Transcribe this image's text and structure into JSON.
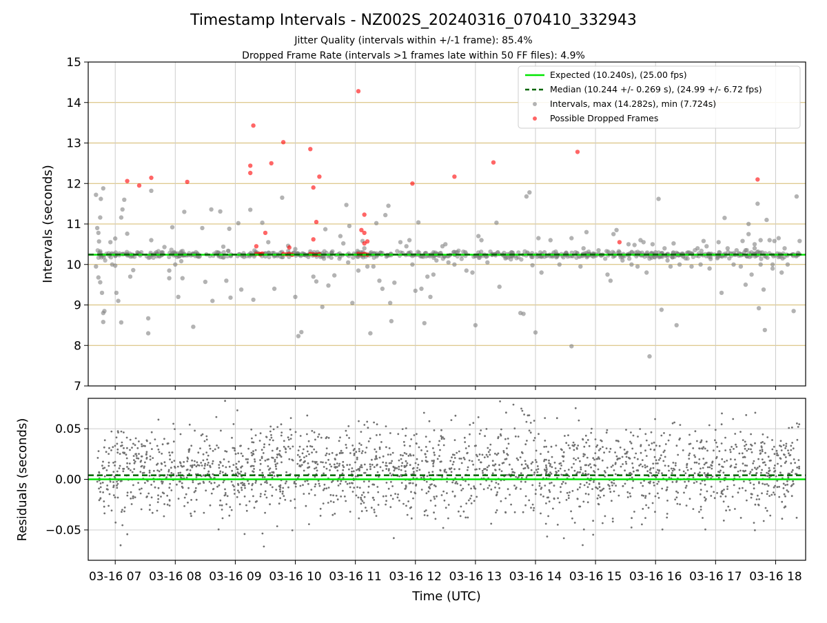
{
  "chart_data": [
    {
      "type": "scatter",
      "title": "Timestamp Intervals - NZ002S_20240316_070410_332943",
      "subtitle_lines": [
        "Jitter Quality (intervals within +/-1 frame): 85.4%",
        "Dropped Frame Rate (intervals >1 frames late within 50 FF files): 4.9%"
      ],
      "xlabel": "",
      "ylabel": "Intervals (seconds)",
      "ylim": [
        7,
        15
      ],
      "yticks": [
        "7",
        "8",
        "9",
        "10",
        "11",
        "12",
        "13",
        "14",
        "15"
      ],
      "xlim_hours": [
        6.55,
        18.5
      ],
      "xticks_hours": [
        7,
        8,
        9,
        10,
        11,
        12,
        13,
        14,
        15,
        16,
        17,
        18
      ],
      "grid": "x and y",
      "legend_position": "top-right",
      "expected": {
        "label": "Expected (10.240s), (25.00 fps)",
        "value": 10.24,
        "color": "#00e600"
      },
      "median": {
        "label": "Median (10.244 +/- 0.269 s), (24.99 +/- 6.72 fps)",
        "value": 10.244,
        "color": "#006400"
      },
      "intervals_series": {
        "label": "Intervals, max (14.282s), min (7.724s)",
        "color": "#808080",
        "max": 14.282,
        "min": 7.724
      },
      "dropped_series": {
        "label": "Possible Dropped Frames",
        "color": "#ff0000"
      },
      "dropped_points": [
        [
          7.4,
          11.95
        ],
        [
          7.6,
          12.14
        ],
        [
          7.2,
          12.06
        ],
        [
          8.2,
          12.04
        ],
        [
          9.3,
          13.43
        ],
        [
          9.25,
          12.44
        ],
        [
          9.25,
          12.26
        ],
        [
          9.6,
          12.5
        ],
        [
          9.8,
          13.02
        ],
        [
          10.25,
          12.85
        ],
        [
          10.4,
          12.17
        ],
        [
          10.3,
          11.9
        ],
        [
          10.35,
          11.05
        ],
        [
          10.3,
          10.62
        ],
        [
          9.35,
          10.45
        ],
        [
          9.5,
          10.78
        ],
        [
          9.9,
          10.42
        ],
        [
          11.05,
          14.28
        ],
        [
          11.15,
          11.23
        ],
        [
          11.1,
          10.85
        ],
        [
          11.15,
          10.78
        ],
        [
          11.2,
          10.57
        ],
        [
          11.15,
          10.52
        ],
        [
          11.95,
          12.0
        ],
        [
          12.65,
          12.17
        ],
        [
          13.3,
          12.52
        ],
        [
          14.7,
          12.78
        ],
        [
          15.4,
          10.55
        ],
        [
          17.7,
          12.1
        ],
        [
          9.35,
          10.26
        ],
        [
          9.4,
          10.26
        ],
        [
          9.42,
          10.25
        ],
        [
          9.45,
          10.27
        ],
        [
          9.8,
          10.26
        ],
        [
          9.85,
          10.25
        ],
        [
          9.9,
          10.26
        ],
        [
          9.95,
          10.24
        ],
        [
          10.25,
          10.26
        ],
        [
          10.3,
          10.25
        ],
        [
          10.35,
          10.24
        ],
        [
          10.4,
          10.25
        ],
        [
          11.05,
          10.26
        ],
        [
          11.1,
          10.25
        ],
        [
          11.15,
          10.26
        ],
        [
          11.2,
          10.24
        ]
      ],
      "interval_outliers": [
        [
          6.68,
          11.72
        ],
        [
          6.7,
          10.9
        ],
        [
          6.72,
          10.78
        ],
        [
          6.75,
          11.16
        ],
        [
          6.76,
          11.62
        ],
        [
          6.8,
          11.88
        ],
        [
          6.73,
          10.57
        ],
        [
          6.68,
          9.95
        ],
        [
          6.72,
          9.68
        ],
        [
          6.75,
          9.56
        ],
        [
          6.78,
          9.3
        ],
        [
          6.8,
          8.8
        ],
        [
          6.82,
          8.85
        ],
        [
          6.8,
          8.58
        ],
        [
          6.92,
          10.55
        ],
        [
          6.95,
          10.0
        ],
        [
          7.0,
          9.97
        ],
        [
          7.0,
          10.64
        ],
        [
          7.1,
          11.16
        ],
        [
          7.05,
          9.1
        ],
        [
          7.02,
          9.3
        ],
        [
          7.1,
          8.57
        ],
        [
          7.15,
          11.6
        ],
        [
          7.12,
          11.36
        ],
        [
          7.2,
          10.76
        ],
        [
          7.25,
          9.7
        ],
        [
          7.3,
          9.86
        ],
        [
          7.55,
          8.67
        ],
        [
          7.6,
          11.82
        ],
        [
          7.55,
          8.3
        ],
        [
          7.6,
          10.6
        ],
        [
          7.82,
          10.43
        ],
        [
          7.9,
          9.85
        ],
        [
          7.9,
          9.66
        ],
        [
          7.95,
          10.92
        ],
        [
          8.0,
          10.0
        ],
        [
          8.05,
          9.2
        ],
        [
          8.1,
          10.08
        ],
        [
          8.12,
          9.66
        ],
        [
          8.15,
          11.3
        ],
        [
          8.3,
          8.46
        ],
        [
          8.45,
          10.9
        ],
        [
          8.5,
          9.57
        ],
        [
          8.6,
          11.36
        ],
        [
          8.62,
          9.1
        ],
        [
          8.75,
          11.31
        ],
        [
          8.8,
          10.44
        ],
        [
          8.85,
          9.6
        ],
        [
          8.9,
          10.88
        ],
        [
          8.92,
          9.18
        ],
        [
          9.05,
          11.02
        ],
        [
          9.1,
          9.38
        ],
        [
          9.25,
          11.35
        ],
        [
          9.3,
          9.13
        ],
        [
          9.45,
          11.03
        ],
        [
          9.5,
          10.2
        ],
        [
          9.55,
          10.55
        ],
        [
          9.65,
          9.4
        ],
        [
          9.78,
          11.65
        ],
        [
          9.88,
          10.46
        ],
        [
          10.0,
          10.38
        ],
        [
          10.0,
          9.2
        ],
        [
          10.05,
          8.23
        ],
        [
          10.1,
          8.33
        ],
        [
          10.25,
          10.32
        ],
        [
          10.3,
          9.7
        ],
        [
          10.35,
          9.58
        ],
        [
          10.45,
          8.95
        ],
        [
          10.5,
          10.87
        ],
        [
          10.55,
          9.48
        ],
        [
          10.6,
          10.17
        ],
        [
          10.65,
          9.73
        ],
        [
          10.75,
          10.7
        ],
        [
          10.8,
          10.52
        ],
        [
          10.85,
          11.47
        ],
        [
          10.9,
          10.95
        ],
        [
          10.95,
          9.05
        ],
        [
          10.88,
          10.05
        ],
        [
          11.05,
          9.85
        ],
        [
          11.12,
          10.58
        ],
        [
          11.15,
          10.4
        ],
        [
          11.2,
          9.95
        ],
        [
          11.25,
          8.3
        ],
        [
          11.3,
          9.95
        ],
        [
          11.35,
          11.02
        ],
        [
          11.4,
          9.6
        ],
        [
          11.45,
          9.4
        ],
        [
          11.5,
          11.22
        ],
        [
          11.55,
          11.45
        ],
        [
          11.58,
          9.05
        ],
        [
          11.6,
          8.6
        ],
        [
          11.65,
          9.55
        ],
        [
          11.75,
          10.55
        ],
        [
          11.85,
          10.45
        ],
        [
          11.9,
          10.6
        ],
        [
          11.95,
          10.0
        ],
        [
          12.0,
          9.35
        ],
        [
          12.05,
          11.04
        ],
        [
          12.1,
          9.4
        ],
        [
          12.15,
          8.55
        ],
        [
          12.2,
          9.7
        ],
        [
          12.25,
          9.2
        ],
        [
          12.3,
          9.75
        ],
        [
          12.35,
          10.1
        ],
        [
          12.45,
          10.45
        ],
        [
          12.5,
          10.5
        ],
        [
          12.55,
          10.05
        ],
        [
          12.65,
          10.0
        ],
        [
          12.7,
          10.3
        ],
        [
          12.85,
          9.85
        ],
        [
          12.95,
          9.8
        ],
        [
          13.0,
          8.5
        ],
        [
          13.05,
          10.7
        ],
        [
          13.1,
          10.6
        ],
        [
          13.2,
          10.05
        ],
        [
          13.35,
          11.03
        ],
        [
          13.4,
          9.45
        ],
        [
          13.5,
          10.15
        ],
        [
          13.6,
          10.3
        ],
        [
          13.75,
          8.8
        ],
        [
          13.8,
          8.78
        ],
        [
          13.85,
          11.68
        ],
        [
          13.9,
          11.78
        ],
        [
          13.95,
          9.98
        ],
        [
          14.0,
          8.32
        ],
        [
          14.05,
          10.65
        ],
        [
          14.1,
          9.8
        ],
        [
          14.15,
          10.3
        ],
        [
          14.25,
          10.6
        ],
        [
          14.4,
          10.0
        ],
        [
          14.6,
          7.98
        ],
        [
          14.75,
          9.95
        ],
        [
          14.8,
          10.4
        ],
        [
          14.85,
          10.8
        ],
        [
          14.6,
          10.65
        ],
        [
          15.05,
          10.35
        ],
        [
          15.2,
          9.75
        ],
        [
          15.25,
          9.6
        ],
        [
          15.3,
          10.75
        ],
        [
          15.35,
          10.85
        ],
        [
          15.45,
          10.1
        ],
        [
          15.55,
          10.5
        ],
        [
          15.6,
          10.0
        ],
        [
          15.65,
          10.48
        ],
        [
          15.7,
          9.95
        ],
        [
          15.75,
          10.6
        ],
        [
          15.8,
          10.55
        ],
        [
          15.85,
          9.8
        ],
        [
          15.9,
          7.73
        ],
        [
          15.95,
          10.5
        ],
        [
          16.0,
          10.3
        ],
        [
          16.05,
          11.62
        ],
        [
          16.1,
          8.88
        ],
        [
          16.15,
          10.4
        ],
        [
          16.2,
          10.1
        ],
        [
          16.25,
          9.95
        ],
        [
          16.3,
          10.52
        ],
        [
          16.35,
          8.5
        ],
        [
          16.4,
          10.0
        ],
        [
          16.5,
          10.15
        ],
        [
          16.6,
          9.95
        ],
        [
          16.7,
          10.4
        ],
        [
          16.75,
          10.0
        ],
        [
          16.8,
          10.58
        ],
        [
          16.85,
          10.45
        ],
        [
          16.9,
          9.9
        ],
        [
          17.05,
          10.55
        ],
        [
          17.1,
          9.3
        ],
        [
          17.15,
          11.15
        ],
        [
          17.2,
          10.4
        ],
        [
          17.3,
          10.0
        ],
        [
          17.35,
          10.35
        ],
        [
          17.45,
          10.58
        ],
        [
          17.5,
          9.5
        ],
        [
          17.55,
          11.0
        ],
        [
          17.65,
          10.4
        ],
        [
          17.75,
          10.0
        ],
        [
          17.8,
          9.38
        ],
        [
          17.85,
          11.1
        ],
        [
          17.95,
          10.0
        ],
        [
          18.05,
          10.65
        ],
        [
          18.1,
          9.8
        ],
        [
          18.15,
          10.4
        ],
        [
          18.2,
          10.0
        ],
        [
          18.3,
          8.85
        ],
        [
          18.35,
          11.68
        ],
        [
          18.4,
          10.58
        ],
        [
          17.42,
          9.95
        ],
        [
          17.5,
          10.35
        ],
        [
          17.55,
          10.75
        ],
        [
          17.6,
          9.75
        ],
        [
          17.65,
          10.5
        ],
        [
          17.7,
          11.5
        ],
        [
          17.72,
          8.92
        ],
        [
          17.75,
          10.6
        ],
        [
          17.82,
          8.38
        ],
        [
          17.9,
          10.6
        ],
        [
          17.95,
          9.9
        ],
        [
          17.98,
          10.58
        ]
      ],
      "interval_baseline": {
        "center": 10.24,
        "spread": 0.04,
        "color": "#808080"
      }
    },
    {
      "type": "scatter",
      "title": "",
      "xlabel": "Time (UTC)",
      "ylabel": "Residuals (seconds)",
      "ylim": [
        -0.08,
        0.08
      ],
      "yticks": [
        "−0.05",
        "0.00",
        "0.05"
      ],
      "ytick_values": [
        -0.05,
        0.0,
        0.05
      ],
      "xlim_hours": [
        6.55,
        18.5
      ],
      "xticks_hours": [
        7,
        8,
        9,
        10,
        11,
        12,
        13,
        14,
        15,
        16,
        17,
        18
      ],
      "xtick_labels": [
        "03-16 07",
        "03-16 08",
        "03-16 09",
        "03-16 10",
        "03-16 11",
        "03-16 12",
        "03-16 13",
        "03-16 14",
        "03-16 15",
        "03-16 16",
        "03-16 17",
        "03-16 18"
      ],
      "grid": "x and y",
      "expected_residual": {
        "value": 0.0,
        "color": "#00e600"
      },
      "median_residual": {
        "value": 0.004,
        "color": "#006400"
      },
      "residual_scatter": {
        "count": 2200,
        "center": 0.008,
        "spread": 0.022,
        "min": -0.075,
        "max": 0.078,
        "color": "#707070"
      }
    }
  ]
}
